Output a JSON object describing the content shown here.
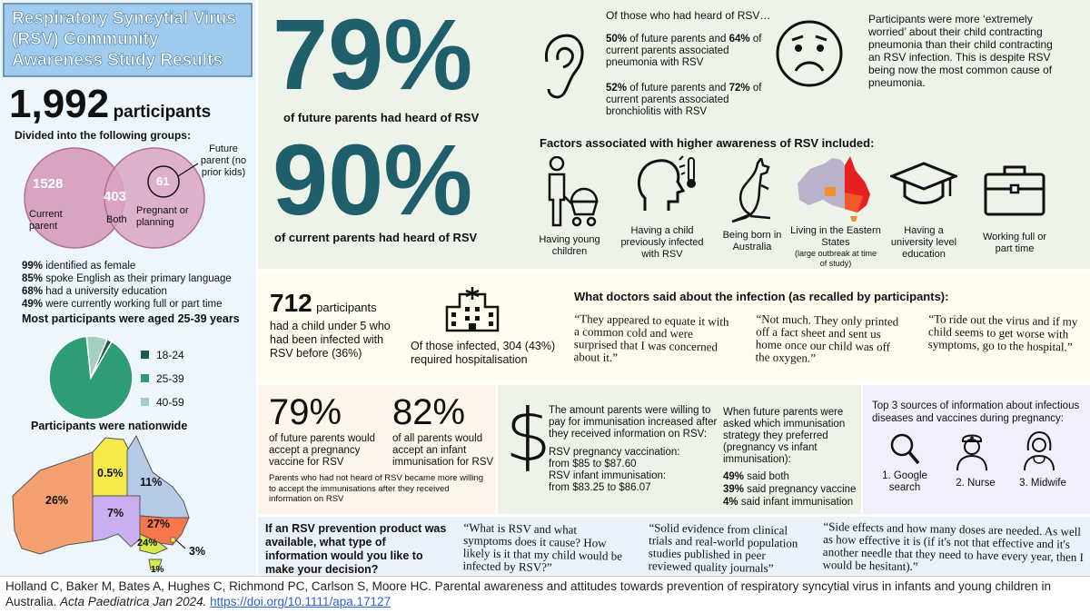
{
  "colors": {
    "title_bg": "#9ecbee",
    "left_bg": "#eef6fd",
    "green_bg": "#eef3e9",
    "yellow_bg": "#fdfcee",
    "peach_bg": "#fdf5ec",
    "purple_bg": "#f2eefb",
    "blue_bg": "#e9f1fb",
    "teal": "#1f5f6b",
    "pink": "#d9a3c2",
    "pie_dark": "#1e5a45",
    "pie_mid": "#2e9c75",
    "pie_light": "#a3cfc0"
  },
  "title": "Respiratory Syncytial Virus (RSV) Community Awareness Study Results",
  "participants": {
    "number": "1,992",
    "label": "participants",
    "groups_heading": "Divided into the following groups:"
  },
  "venn": {
    "current_value": "1528",
    "current_label": "Current parent",
    "both_value": "403",
    "both_label": "Both",
    "planning_value": "61",
    "planning_label": "Pregnant or planning",
    "future_label": "Future parent (no prior kids)"
  },
  "demographics": [
    {
      "pct": "99%",
      "text": "identified as female"
    },
    {
      "pct": "85%",
      "text": "spoke English as their primary language"
    },
    {
      "pct": "68%",
      "text": "had a university education"
    },
    {
      "pct": "49%",
      "text": "were currently working full or part time"
    }
  ],
  "age_heading": "Most participants were aged 25-39 years",
  "age_pie": [
    {
      "label": "18-24",
      "value": 2
    },
    {
      "label": "25-39",
      "value": 90
    },
    {
      "label": "40-59",
      "value": 8
    }
  ],
  "nationwide": {
    "heading": "Participants were nationwide",
    "regions": [
      {
        "state": "WA",
        "value": "26%"
      },
      {
        "state": "NT",
        "value": "0.5%"
      },
      {
        "state": "QLD",
        "value": "11%"
      },
      {
        "state": "SA",
        "value": "7%"
      },
      {
        "state": "NSW",
        "value": "27%"
      },
      {
        "state": "VIC",
        "value": "24%"
      },
      {
        "state": "ACT",
        "value": "3%"
      },
      {
        "state": "TAS",
        "value": "1%"
      }
    ]
  },
  "awareness": {
    "future_pct": "79%",
    "future_text": "of future parents had heard of RSV",
    "current_pct": "90%",
    "current_text": "of current parents had heard of RSV",
    "heard_heading": "Of those who had heard of RSV…",
    "pneumonia": {
      "future": "50%",
      "mid1": "of future parents and",
      "current": "64%",
      "mid2": "of current parents associated pneumonia with RSV"
    },
    "bronchiolitis": {
      "future": "52%",
      "mid1": "of future parents and",
      "current": "72%",
      "mid2": "of current parents associated bronchiolitis with RSV"
    },
    "worried_text": "Participants were more ‘extremely worried’ about their child contracting pneumonia than their child contracting an RSV infection. This is despite RSV being now the most common cause of pneumonia."
  },
  "factors": {
    "heading": "Factors associated with higher awareness of RSV included:",
    "items": [
      {
        "label": "Having young children",
        "sub": ""
      },
      {
        "label": "Having a child previously infected with RSV",
        "sub": ""
      },
      {
        "label": "Being born in Australia",
        "sub": ""
      },
      {
        "label": "Living in the Eastern States",
        "sub": "(large outbreak at time of study)"
      },
      {
        "label": "Having a university level education",
        "sub": ""
      },
      {
        "label": "Working full or part time",
        "sub": ""
      }
    ]
  },
  "infected": {
    "number": "712",
    "number_label": "participants",
    "text": "had a child under 5 who had been infected with RSV before (36%)",
    "hospital_text": "Of those infected, 304 (43%) required hospitalisation"
  },
  "doctors": {
    "heading": "What doctors said about the infection (as recalled by participants):",
    "quotes": [
      "“They appeared to equate it with a common cold and were surprised that I was concerned about it.”",
      "“Not much. They only printed off a fact sheet and sent us home once our child was off the oxygen.”",
      "“To ride out the virus and if my child seems to get worse with symptoms, go to the hospital.”"
    ]
  },
  "acceptance": {
    "pregnancy_pct": "79%",
    "pregnancy_text": "of future parents would accept a pregnancy vaccine for RSV",
    "infant_pct": "82%",
    "infant_text": "of all parents would accept an infant immunisation for RSV",
    "note": "Parents who had not heard of RSV became more willing to accept the immunisations after they received information on RSV"
  },
  "payment": {
    "intro": "The amount parents were willing to pay for immunisation increased after they received information on RSV:",
    "line1": "RSV pregnancy vaccination:",
    "line2": "from $85 to $87.60",
    "line3": "RSV infant immunisation:",
    "line4": "from $83.25 to $86.07"
  },
  "strategy": {
    "intro": "When future parents were asked which immunisation strategy they preferred (pregnancy vs infant immunisation):",
    "items": [
      {
        "pct": "49%",
        "text": "said both"
      },
      {
        "pct": "39%",
        "text": "said pregnancy vaccine"
      },
      {
        "pct": "4%",
        "text": "said infant immunisation"
      }
    ]
  },
  "sources": {
    "heading": "Top 3 sources of information about infectious diseases and vaccines during pregnancy:",
    "items": [
      "1. Google search",
      "2. Nurse",
      "3. Midwife"
    ]
  },
  "prevention": {
    "question": "If an RSV prevention product was available, what type of information would you like to make your decision?",
    "quotes": [
      "“What is RSV and what symptoms does it cause? How likely is it that my child would be infected by RSV?”",
      "“Solid evidence from clinical trials and real-world population studies published in peer reviewed quality journals”",
      "“Side effects and how many doses are needed. As well as how effective it is (if it's not that effective and it's another needle that they need to have every year, then I would be hesitant).”"
    ]
  },
  "citation": {
    "text": "Holland C, Baker M, Bates A, Hughes C, Richmond PC, Carlson S, Moore HC. Parental awareness and attitudes towards prevention of respiratory syncytial virus in infants and young children in Australia.",
    "journal": "Acta Paediatrica Jan 2024.",
    "doi": "https://doi.org/10.1111/apa.17127"
  },
  "icons": [
    "ear-icon",
    "worried-face-icon",
    "parent-pram-icon",
    "sick-child-icon",
    "kangaroo-icon",
    "australia-map-icon",
    "graduation-cap-icon",
    "briefcase-icon",
    "hospital-icon",
    "dollar-icon",
    "search-icon",
    "nurse-icon",
    "midwife-icon"
  ]
}
